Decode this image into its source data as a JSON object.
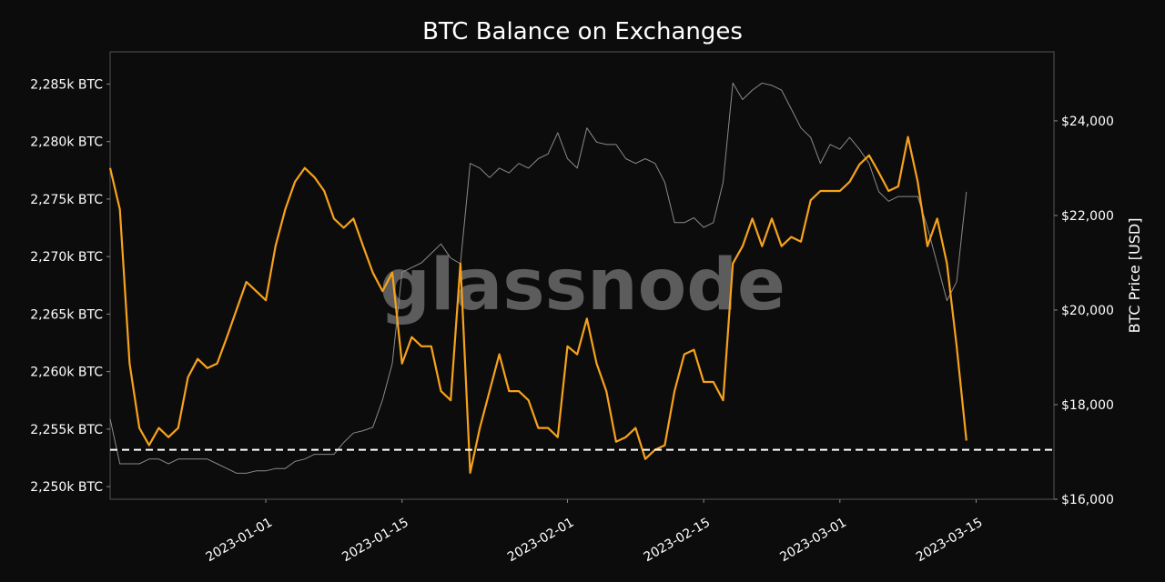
{
  "chart_data": {
    "type": "line",
    "title": "BTC Balance on Exchanges",
    "watermark": "glassnode",
    "y2label": "BTC Price [USD]",
    "x": [
      "2022-12-16",
      "2022-12-17",
      "2022-12-18",
      "2022-12-19",
      "2022-12-20",
      "2022-12-21",
      "2022-12-22",
      "2022-12-23",
      "2022-12-24",
      "2022-12-25",
      "2022-12-26",
      "2022-12-27",
      "2022-12-28",
      "2022-12-29",
      "2022-12-30",
      "2022-12-31",
      "2023-01-01",
      "2023-01-02",
      "2023-01-03",
      "2023-01-04",
      "2023-01-05",
      "2023-01-06",
      "2023-01-07",
      "2023-01-08",
      "2023-01-09",
      "2023-01-10",
      "2023-01-11",
      "2023-01-12",
      "2023-01-13",
      "2023-01-14",
      "2023-01-15",
      "2023-01-16",
      "2023-01-17",
      "2023-01-18",
      "2023-01-19",
      "2023-01-20",
      "2023-01-21",
      "2023-01-22",
      "2023-01-23",
      "2023-01-24",
      "2023-01-25",
      "2023-01-26",
      "2023-01-27",
      "2023-01-28",
      "2023-01-29",
      "2023-01-30",
      "2023-01-31",
      "2023-02-01",
      "2023-02-02",
      "2023-02-03",
      "2023-02-04",
      "2023-02-05",
      "2023-02-06",
      "2023-02-07",
      "2023-02-08",
      "2023-02-09",
      "2023-02-10",
      "2023-02-11",
      "2023-02-12",
      "2023-02-13",
      "2023-02-14",
      "2023-02-15",
      "2023-02-16",
      "2023-02-17",
      "2023-02-18",
      "2023-02-19",
      "2023-02-20",
      "2023-02-21",
      "2023-02-22",
      "2023-02-23",
      "2023-02-24",
      "2023-02-25",
      "2023-02-26",
      "2023-02-27",
      "2023-02-28",
      "2023-03-01",
      "2023-03-02",
      "2023-03-03",
      "2023-03-04",
      "2023-03-05",
      "2023-03-06",
      "2023-03-07",
      "2023-03-08",
      "2023-03-09",
      "2023-03-10",
      "2023-03-11",
      "2023-03-12",
      "2023-03-13",
      "2023-03-14"
    ],
    "series": [
      {
        "color": "#8a8a8a",
        "axis": "y2",
        "values": [
          17700,
          16750,
          16750,
          16750,
          16850,
          16850,
          16750,
          16850,
          16850,
          16850,
          16850,
          16750,
          16650,
          16550,
          16550,
          16600,
          16600,
          16650,
          16650,
          16800,
          16850,
          16950,
          16950,
          16950,
          17200,
          17400,
          17450,
          17520,
          18100,
          18870,
          20800,
          20900,
          21000,
          21200,
          21400,
          21100,
          20980,
          23100,
          23000,
          22800,
          23000,
          22900,
          23100,
          23000,
          23200,
          23300,
          23750,
          23200,
          23000,
          23850,
          23550,
          23500,
          23500,
          23200,
          23100,
          23200,
          23100,
          22700,
          21850,
          21850,
          21950,
          21750,
          21850,
          22700,
          24800,
          24450,
          24650,
          24800,
          24750,
          24650,
          24250,
          23850,
          23650,
          23100,
          23500,
          23400,
          23650,
          23400,
          23100,
          22500,
          22300,
          22400,
          22400,
          22400,
          21750,
          20980,
          20200,
          20600,
          22500
        ]
      },
      {
        "color": "#f7a21b",
        "values": [
          2277.7,
          2274.1,
          2260.7,
          2255.1,
          2253.6,
          2255.1,
          2254.3,
          2255.1,
          2259.5,
          2261.1,
          2260.3,
          2260.7,
          2263.0,
          2265.4,
          2267.8,
          2267.0,
          2266.2,
          2270.9,
          2274.1,
          2276.5,
          2277.7,
          2276.9,
          2275.7,
          2273.3,
          2272.5,
          2273.3,
          2270.9,
          2268.6,
          2267.0,
          2268.6,
          2260.7,
          2263.0,
          2262.2,
          2262.2,
          2258.3,
          2257.5,
          2269.4,
          2251.2,
          2255.1,
          2258.3,
          2261.5,
          2258.3,
          2258.3,
          2257.5,
          2255.1,
          2255.1,
          2254.3,
          2262.2,
          2261.5,
          2264.6,
          2260.7,
          2258.3,
          2253.9,
          2254.3,
          2255.1,
          2252.4,
          2253.2,
          2253.6,
          2258.3,
          2261.5,
          2261.9,
          2259.1,
          2259.1,
          2257.5,
          2269.4,
          2270.9,
          2273.3,
          2270.9,
          2273.3,
          2270.9,
          2271.7,
          2271.3,
          2274.9,
          2275.7,
          2275.7,
          2275.7,
          2276.5,
          2278.0,
          2278.8,
          2277.3,
          2275.7,
          2276.1,
          2280.4,
          2276.5,
          2270.9,
          2273.3,
          2269.4,
          2262.2,
          2254.0
        ]
      }
    ],
    "hline": 2253.2,
    "xlim": [
      "2022-12-16",
      "2023-03-23"
    ],
    "xticks": [
      "2023-01-01",
      "2023-01-15",
      "2023-02-01",
      "2023-02-15",
      "2023-03-01",
      "2023-03-15"
    ],
    "ylim": [
      2248.9,
      2287.8
    ],
    "yticks": [
      {
        "value": 2250,
        "label": "2,250k BTC"
      },
      {
        "value": 2255,
        "label": "2,255k BTC"
      },
      {
        "value": 2260,
        "label": "2,260k BTC"
      },
      {
        "value": 2265,
        "label": "2,265k BTC"
      },
      {
        "value": 2270,
        "label": "2,270k BTC"
      },
      {
        "value": 2275,
        "label": "2,275k BTC"
      },
      {
        "value": 2280,
        "label": "2,280k BTC"
      },
      {
        "value": 2285,
        "label": "2,285k BTC"
      }
    ],
    "y2lim": [
      16000,
      25460
    ],
    "y2ticks": [
      {
        "value": 16000,
        "label": "$16,000"
      },
      {
        "value": 18000,
        "label": "$18,000"
      },
      {
        "value": 20000,
        "label": "$20,000"
      },
      {
        "value": 22000,
        "label": "$22,000"
      },
      {
        "value": 24000,
        "label": "$24,000"
      }
    ]
  }
}
